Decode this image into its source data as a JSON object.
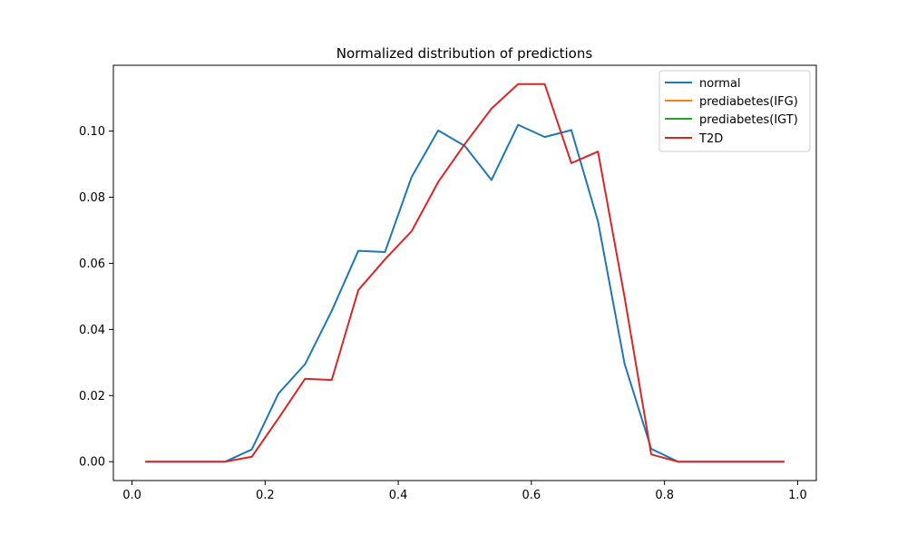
{
  "chart_data": {
    "type": "line",
    "title": "Normalized distribution of predictions",
    "xlabel": "",
    "ylabel": "",
    "xlim": [
      -0.028,
      1.028
    ],
    "ylim": [
      -0.0057,
      0.1199
    ],
    "xticks": [
      0.0,
      0.2,
      0.4,
      0.6,
      0.8,
      1.0
    ],
    "xtick_labels": [
      "0.0",
      "0.2",
      "0.4",
      "0.6",
      "0.8",
      "1.0"
    ],
    "yticks": [
      0.0,
      0.02,
      0.04,
      0.06,
      0.08,
      0.1
    ],
    "ytick_labels": [
      "0.00",
      "0.02",
      "0.04",
      "0.06",
      "0.08",
      "0.10"
    ],
    "grid": false,
    "legend_position": "top-right",
    "x": [
      0.02,
      0.06,
      0.1,
      0.14,
      0.18,
      0.22,
      0.26,
      0.3,
      0.34,
      0.38,
      0.42,
      0.46,
      0.5,
      0.54,
      0.58,
      0.62,
      0.66,
      0.7,
      0.74,
      0.78,
      0.82,
      0.86,
      0.9,
      0.94,
      0.98
    ],
    "series": [
      {
        "name": "normal",
        "color": "#1f77b4",
        "values": [
          0,
          0,
          0,
          0,
          0.0037,
          0.0206,
          0.0295,
          0.0456,
          0.0638,
          0.0634,
          0.0861,
          0.1002,
          0.0955,
          0.0852,
          0.1019,
          0.0982,
          0.1003,
          0.0727,
          0.0296,
          0.0039,
          0,
          0,
          0,
          0,
          0
        ]
      },
      {
        "name": "prediabetes(IFG)",
        "color": "#ff7f0e",
        "values": null
      },
      {
        "name": "prediabetes(IGT)",
        "color": "#2ca02c",
        "values": null
      },
      {
        "name": "T2D",
        "color": "#d62728",
        "values": [
          0,
          0,
          0,
          0,
          0.0015,
          0.0131,
          0.0251,
          0.0247,
          0.0519,
          0.0612,
          0.0697,
          0.0846,
          0.0961,
          0.1068,
          0.1142,
          0.1142,
          0.0903,
          0.0938,
          0.0497,
          0.0022,
          0,
          0,
          0,
          0,
          0
        ]
      }
    ]
  }
}
